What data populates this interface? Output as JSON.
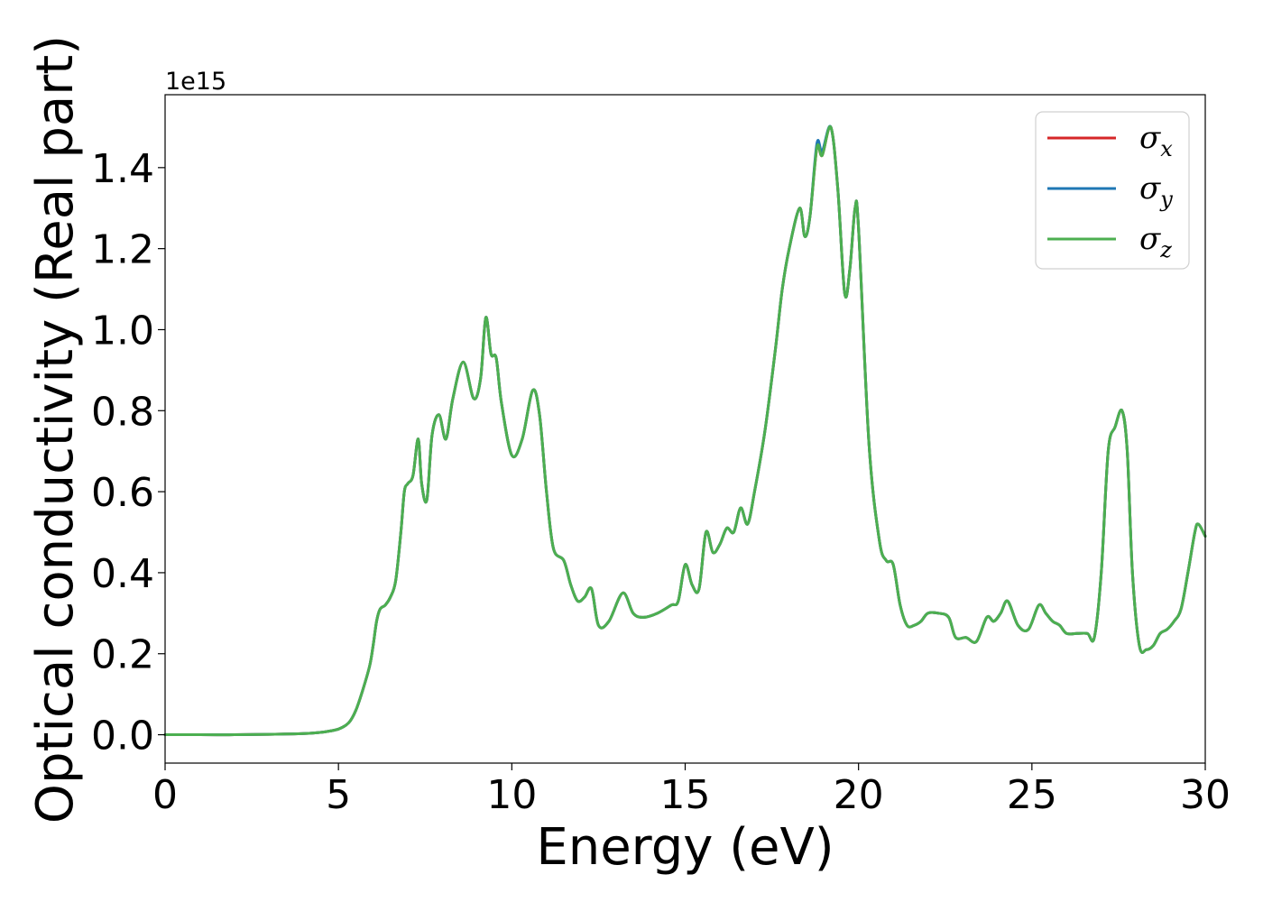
{
  "chart_data": {
    "type": "line",
    "title": "",
    "xlabel": "Energy (eV)",
    "ylabel": "Optical conductivity (Real part)",
    "y_offset_label": "1e15",
    "xlim": [
      0,
      30
    ],
    "ylim": [
      -0.07,
      1.58
    ],
    "x_ticks": [
      0,
      5,
      10,
      15,
      20,
      25,
      30
    ],
    "x_tick_labels": [
      "0",
      "5",
      "10",
      "15",
      "20",
      "25",
      "30"
    ],
    "y_ticks": [
      0.0,
      0.2,
      0.4,
      0.6,
      0.8,
      1.0,
      1.2,
      1.4
    ],
    "y_tick_labels": [
      "0.0",
      "0.2",
      "0.4",
      "0.6",
      "0.8",
      "1.0",
      "1.2",
      "1.4"
    ],
    "grid": false,
    "legend_position": "top-right",
    "x": [
      0,
      1,
      2,
      3,
      4,
      4.5,
      5,
      5.3,
      5.5,
      5.7,
      5.9,
      6.0,
      6.1,
      6.2,
      6.35,
      6.5,
      6.65,
      6.8,
      6.9,
      7.0,
      7.15,
      7.3,
      7.4,
      7.55,
      7.7,
      7.9,
      8.1,
      8.3,
      8.6,
      8.9,
      9.1,
      9.25,
      9.4,
      9.55,
      9.7,
      10.0,
      10.3,
      10.6,
      10.8,
      11.0,
      11.2,
      11.5,
      11.7,
      11.9,
      12.1,
      12.3,
      12.5,
      12.8,
      13.2,
      13.5,
      13.8,
      14.2,
      14.6,
      14.8,
      15.0,
      15.2,
      15.4,
      15.6,
      15.8,
      16.0,
      16.2,
      16.4,
      16.6,
      16.8,
      17.0,
      17.3,
      17.6,
      17.8,
      18.0,
      18.3,
      18.45,
      18.6,
      18.8,
      18.95,
      19.2,
      19.4,
      19.6,
      19.75,
      19.9,
      20.0,
      20.3,
      20.6,
      20.8,
      21.0,
      21.2,
      21.4,
      21.6,
      21.8,
      22.0,
      22.3,
      22.6,
      22.8,
      23.1,
      23.4,
      23.7,
      23.9,
      24.1,
      24.3,
      24.6,
      24.9,
      25.2,
      25.4,
      25.6,
      25.8,
      26.0,
      26.3,
      26.6,
      26.8,
      27.0,
      27.2,
      27.4,
      27.6,
      27.75,
      27.9,
      28.1,
      28.3,
      28.5,
      28.7,
      28.9,
      29.1,
      29.3,
      29.5,
      29.7,
      29.8,
      30.0
    ],
    "series": [
      {
        "name": "σx",
        "color": "#d62728",
        "values": [
          0.0,
          0.0,
          0.0,
          0.001,
          0.003,
          0.006,
          0.014,
          0.03,
          0.06,
          0.11,
          0.17,
          0.22,
          0.28,
          0.31,
          0.32,
          0.34,
          0.38,
          0.5,
          0.6,
          0.62,
          0.64,
          0.73,
          0.62,
          0.58,
          0.74,
          0.79,
          0.73,
          0.83,
          0.92,
          0.83,
          0.88,
          1.03,
          0.94,
          0.93,
          0.82,
          0.69,
          0.73,
          0.85,
          0.79,
          0.6,
          0.46,
          0.43,
          0.37,
          0.33,
          0.34,
          0.36,
          0.27,
          0.28,
          0.35,
          0.3,
          0.29,
          0.3,
          0.32,
          0.33,
          0.42,
          0.37,
          0.36,
          0.5,
          0.45,
          0.47,
          0.51,
          0.5,
          0.56,
          0.52,
          0.6,
          0.75,
          0.95,
          1.1,
          1.2,
          1.3,
          1.23,
          1.28,
          1.45,
          1.43,
          1.5,
          1.35,
          1.09,
          1.15,
          1.3,
          1.25,
          0.72,
          0.48,
          0.43,
          0.42,
          0.32,
          0.27,
          0.27,
          0.28,
          0.3,
          0.3,
          0.29,
          0.24,
          0.24,
          0.23,
          0.29,
          0.28,
          0.3,
          0.33,
          0.27,
          0.26,
          0.32,
          0.3,
          0.28,
          0.27,
          0.25,
          0.25,
          0.25,
          0.24,
          0.4,
          0.7,
          0.76,
          0.8,
          0.7,
          0.4,
          0.22,
          0.21,
          0.22,
          0.25,
          0.26,
          0.28,
          0.31,
          0.4,
          0.5,
          0.52,
          0.49
        ]
      },
      {
        "name": "σy",
        "color": "#1f77b4",
        "values": [
          0.0,
          0.0,
          0.0,
          0.001,
          0.003,
          0.006,
          0.014,
          0.03,
          0.06,
          0.11,
          0.17,
          0.22,
          0.28,
          0.31,
          0.32,
          0.34,
          0.38,
          0.5,
          0.6,
          0.62,
          0.64,
          0.73,
          0.62,
          0.58,
          0.74,
          0.79,
          0.73,
          0.83,
          0.92,
          0.83,
          0.88,
          1.03,
          0.94,
          0.93,
          0.82,
          0.69,
          0.73,
          0.85,
          0.79,
          0.6,
          0.46,
          0.43,
          0.37,
          0.33,
          0.34,
          0.36,
          0.27,
          0.28,
          0.35,
          0.3,
          0.29,
          0.3,
          0.32,
          0.33,
          0.42,
          0.37,
          0.36,
          0.5,
          0.45,
          0.47,
          0.51,
          0.5,
          0.56,
          0.52,
          0.6,
          0.75,
          0.95,
          1.1,
          1.2,
          1.3,
          1.23,
          1.28,
          1.46,
          1.44,
          1.5,
          1.35,
          1.09,
          1.15,
          1.3,
          1.25,
          0.72,
          0.48,
          0.43,
          0.42,
          0.32,
          0.27,
          0.27,
          0.28,
          0.3,
          0.3,
          0.29,
          0.24,
          0.24,
          0.23,
          0.29,
          0.28,
          0.3,
          0.33,
          0.27,
          0.26,
          0.32,
          0.3,
          0.28,
          0.27,
          0.25,
          0.25,
          0.25,
          0.24,
          0.4,
          0.7,
          0.76,
          0.8,
          0.7,
          0.4,
          0.22,
          0.21,
          0.22,
          0.25,
          0.26,
          0.28,
          0.31,
          0.4,
          0.5,
          0.52,
          0.49
        ]
      },
      {
        "name": "σz",
        "color": "#4caf50",
        "values": [
          0.0,
          0.0,
          0.0,
          0.001,
          0.003,
          0.006,
          0.014,
          0.03,
          0.06,
          0.11,
          0.17,
          0.22,
          0.28,
          0.31,
          0.32,
          0.34,
          0.38,
          0.5,
          0.6,
          0.62,
          0.64,
          0.73,
          0.62,
          0.58,
          0.74,
          0.79,
          0.73,
          0.83,
          0.92,
          0.83,
          0.88,
          1.03,
          0.94,
          0.93,
          0.82,
          0.69,
          0.73,
          0.85,
          0.79,
          0.6,
          0.46,
          0.43,
          0.37,
          0.33,
          0.34,
          0.36,
          0.27,
          0.28,
          0.35,
          0.3,
          0.29,
          0.3,
          0.32,
          0.33,
          0.42,
          0.37,
          0.36,
          0.5,
          0.45,
          0.47,
          0.51,
          0.5,
          0.56,
          0.52,
          0.6,
          0.75,
          0.95,
          1.1,
          1.2,
          1.3,
          1.23,
          1.28,
          1.45,
          1.43,
          1.5,
          1.35,
          1.09,
          1.15,
          1.3,
          1.25,
          0.72,
          0.48,
          0.43,
          0.42,
          0.32,
          0.27,
          0.27,
          0.28,
          0.3,
          0.3,
          0.29,
          0.24,
          0.24,
          0.23,
          0.29,
          0.28,
          0.3,
          0.33,
          0.27,
          0.26,
          0.32,
          0.3,
          0.28,
          0.27,
          0.25,
          0.25,
          0.25,
          0.24,
          0.4,
          0.7,
          0.76,
          0.8,
          0.7,
          0.4,
          0.22,
          0.21,
          0.22,
          0.25,
          0.26,
          0.28,
          0.31,
          0.4,
          0.5,
          0.52,
          0.49
        ]
      }
    ],
    "legend": [
      {
        "symbol": "σ",
        "sub": "x",
        "color": "#d62728"
      },
      {
        "symbol": "σ",
        "sub": "y",
        "color": "#1f77b4"
      },
      {
        "symbol": "σ",
        "sub": "z",
        "color": "#4caf50"
      }
    ]
  }
}
